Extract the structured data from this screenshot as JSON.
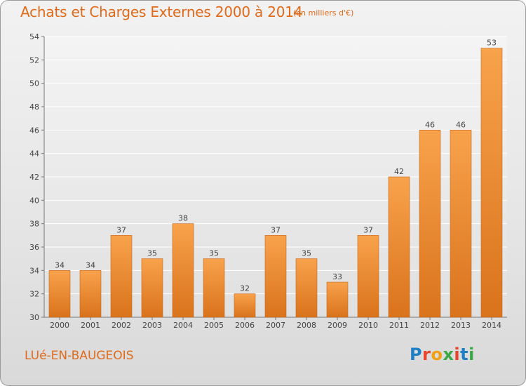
{
  "header": {
    "title": "Achats et Charges Externes 2000 à 2014",
    "subtitle": "(en milliers d'€)"
  },
  "footer": {
    "commune": "LUé-EN-BAUGEOIS",
    "logo_text": "Proxiti"
  },
  "colors": {
    "accent": "#e06a1a",
    "bar_top": "#f8a24c",
    "bar_bottom": "#d9731c",
    "logo_letters": [
      "#1f7fc4",
      "#e8432a",
      "#f2a114",
      "#3aa845",
      "#e8432a",
      "#1f7fc4",
      "#3aa845"
    ]
  },
  "chart_data": {
    "type": "bar",
    "categories": [
      "2000",
      "2001",
      "2002",
      "2003",
      "2004",
      "2005",
      "2006",
      "2007",
      "2008",
      "2009",
      "2010",
      "2011",
      "2012",
      "2013",
      "2014"
    ],
    "values": [
      34,
      34,
      37,
      35,
      38,
      35,
      32,
      37,
      35,
      33,
      37,
      42,
      46,
      46,
      53
    ],
    "value_labels": [
      "34",
      "34",
      "37",
      "35",
      "38",
      "35",
      "32",
      "37",
      "35",
      "33",
      "37",
      "42",
      "46",
      "46",
      "53"
    ],
    "yticks": [
      "30",
      "32",
      "34",
      "36",
      "38",
      "40",
      "42",
      "44",
      "46",
      "48",
      "50",
      "52",
      "54"
    ],
    "ylim": [
      30,
      54
    ],
    "grid": true,
    "legend": false
  }
}
